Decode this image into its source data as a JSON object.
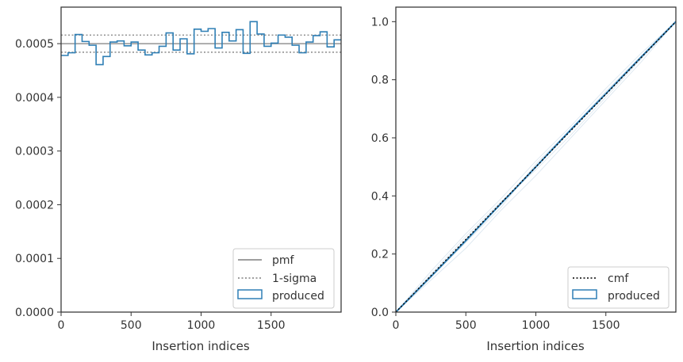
{
  "chart_data": [
    {
      "type": "step",
      "xlabel": "Insertion indices",
      "ylabel": "",
      "xlim": [
        0,
        2000
      ],
      "ylim": [
        0,
        0.000568
      ],
      "xticks": [
        0,
        500,
        1000,
        1500
      ],
      "xtick_labels": [
        "0",
        "500",
        "1000",
        "1500"
      ],
      "yticks": [
        0,
        0.0001,
        0.0002,
        0.0003,
        0.0004,
        0.0005
      ],
      "ytick_labels": [
        "0.0000",
        "0.0001",
        "0.0002",
        "0.0003",
        "0.0004",
        "0.0005"
      ],
      "grid": false,
      "legend_position": "bottom-right",
      "legend": [
        "pmf",
        "1-sigma",
        "produced"
      ],
      "pmf": 0.0005,
      "sigma_band": [
        0.000484,
        0.000516
      ],
      "bin_width": 50,
      "series": [
        {
          "name": "produced",
          "color": "#2f7fb5",
          "values": [
            0.000478,
            0.000483,
            0.000517,
            0.000504,
            0.000497,
            0.000461,
            0.000476,
            0.000503,
            0.000505,
            0.000496,
            0.000503,
            0.000488,
            0.000479,
            0.000483,
            0.000495,
            0.00052,
            0.000488,
            0.000509,
            0.000481,
            0.000527,
            0.000523,
            0.000528,
            0.000492,
            0.000521,
            0.000505,
            0.000526,
            0.000482,
            0.000541,
            0.000518,
            0.000495,
            0.000501,
            0.000516,
            0.000512,
            0.000497,
            0.000483,
            0.000503,
            0.000515,
            0.000522,
            0.000494,
            0.000507
          ]
        }
      ],
      "colors": {
        "pmf": "#7f7f7f",
        "sigma": "#7f7f7f",
        "produced": "#2f7fb5"
      }
    },
    {
      "type": "line",
      "xlabel": "Insertion indices",
      "ylabel": "",
      "xlim": [
        0,
        2000
      ],
      "ylim": [
        0,
        1.05
      ],
      "xticks": [
        0,
        500,
        1000,
        1500
      ],
      "xtick_labels": [
        "0",
        "500",
        "1000",
        "1500"
      ],
      "yticks": [
        0,
        0.2,
        0.4,
        0.6,
        0.8,
        1.0
      ],
      "ytick_labels": [
        "0.0",
        "0.2",
        "0.4",
        "0.6",
        "0.8",
        "1.0"
      ],
      "grid": false,
      "legend_position": "bottom-right",
      "legend": [
        "cmf",
        "produced"
      ],
      "series": [
        {
          "name": "cmf",
          "style": "dotted",
          "color": "#000000",
          "x": [
            0,
            2000
          ],
          "y": [
            0,
            1.0
          ]
        },
        {
          "name": "produced",
          "color": "#2f7fb5",
          "x": [
            0,
            250,
            500,
            750,
            1000,
            1250,
            1500,
            1750,
            2000
          ],
          "y": [
            0,
            0.122,
            0.246,
            0.373,
            0.5,
            0.628,
            0.752,
            0.877,
            1.0
          ]
        }
      ],
      "faint_lines": [
        {
          "x": [
            0,
            250,
            500,
            750,
            1000,
            1250,
            1500,
            1750,
            2000
          ],
          "y": [
            0,
            0.14,
            0.27,
            0.39,
            0.52,
            0.64,
            0.77,
            0.89,
            1.0
          ]
        },
        {
          "x": [
            0,
            250,
            500,
            750,
            1000,
            1250,
            1500,
            1750,
            2000
          ],
          "y": [
            0,
            0.11,
            0.22,
            0.35,
            0.47,
            0.6,
            0.73,
            0.86,
            1.0
          ]
        },
        {
          "x": [
            0,
            250,
            500,
            750,
            1000,
            1250,
            1500,
            1750,
            2000
          ],
          "y": [
            0,
            0.13,
            0.26,
            0.38,
            0.49,
            0.61,
            0.74,
            0.87,
            1.0
          ]
        },
        {
          "x": [
            0,
            250,
            500,
            750,
            1000,
            1250,
            1500,
            1750,
            2000
          ],
          "y": [
            0,
            0.12,
            0.24,
            0.36,
            0.51,
            0.63,
            0.76,
            0.88,
            1.0
          ]
        }
      ],
      "faint_color": "#dfe9f1"
    }
  ]
}
